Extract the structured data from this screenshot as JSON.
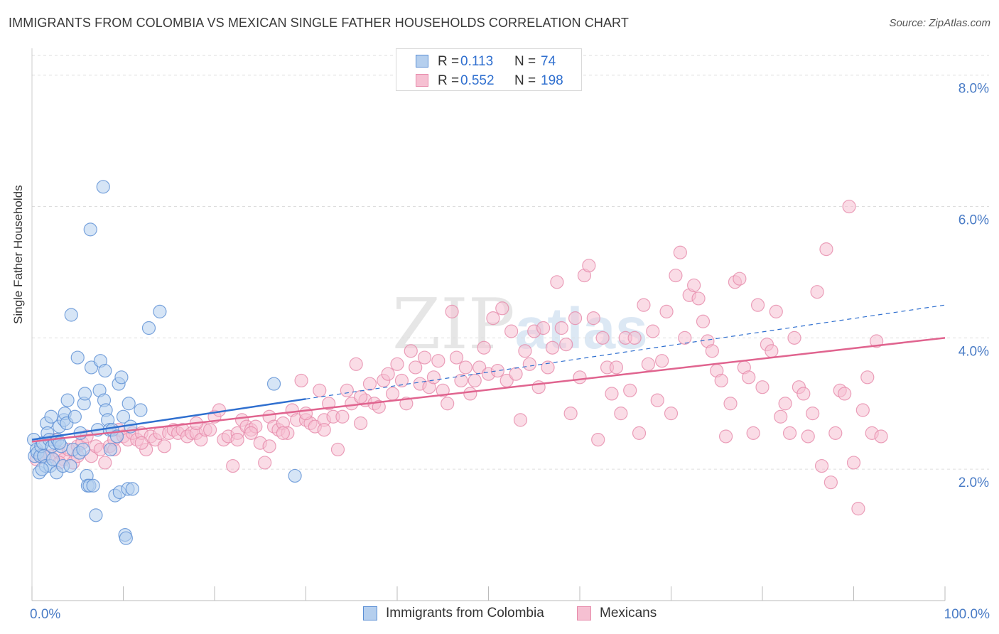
{
  "title": "IMMIGRANTS FROM COLOMBIA VS MEXICAN SINGLE FATHER HOUSEHOLDS CORRELATION CHART",
  "source": "Source: ZipAtlas.com",
  "watermark": {
    "zip": "ZIP",
    "atlas": "atlas"
  },
  "legend_top": {
    "rows": [
      {
        "r_label": "R =",
        "r_value": "0.113",
        "n_label": "N =",
        "n_value": "74"
      },
      {
        "r_label": "R =",
        "r_value": "0.552",
        "n_label": "N =",
        "n_value": "198"
      }
    ]
  },
  "legend_bottom": {
    "items": [
      "Immigrants from Colombia",
      "Mexicans"
    ]
  },
  "colors": {
    "blue_fill": "#b5cfee",
    "blue_stroke": "#5b8fd4",
    "blue_line": "#2f6fcf",
    "pink_fill": "#f6c0d2",
    "pink_stroke": "#e68aaa",
    "pink_line": "#e0648f",
    "tick_label": "#4a7cc6",
    "grid": "#dddddd"
  },
  "chart_data": {
    "type": "scatter",
    "title": "IMMIGRANTS FROM COLOMBIA VS MEXICAN SINGLE FATHER HOUSEHOLDS CORRELATION CHART",
    "xlabel": "",
    "ylabel": "Single Father Households",
    "xlim": [
      0,
      100
    ],
    "ylim": [
      0,
      8.3
    ],
    "x_tick_labels": [
      {
        "value": 0,
        "label": "0.0%"
      },
      {
        "value": 100,
        "label": "100.0%"
      }
    ],
    "y_ticks": [
      {
        "value": 2,
        "label": "2.0%"
      },
      {
        "value": 4,
        "label": "4.0%"
      },
      {
        "value": 6,
        "label": "6.0%"
      },
      {
        "value": 8,
        "label": "8.0%"
      }
    ],
    "x_minor_ticks": [
      0,
      10,
      20,
      30,
      40,
      50,
      60,
      70,
      80,
      90,
      100
    ],
    "grid": true,
    "legend_position": "top-center",
    "series": [
      {
        "name": "Immigrants from Colombia",
        "R": 0.113,
        "N": 74,
        "trend": {
          "x0": 0,
          "y0": 2.45,
          "x1": 30,
          "y1": 3.07,
          "dashed_to": 100,
          "y_at_dashed_end": 4.5
        },
        "points": [
          [
            0.2,
            2.45
          ],
          [
            0.3,
            2.2
          ],
          [
            0.5,
            2.3
          ],
          [
            0.6,
            2.25
          ],
          [
            0.8,
            1.95
          ],
          [
            0.9,
            2.2
          ],
          [
            1.0,
            2.35
          ],
          [
            1.2,
            2.4
          ],
          [
            1.3,
            2.2
          ],
          [
            1.5,
            2.05
          ],
          [
            1.6,
            2.7
          ],
          [
            1.7,
            2.55
          ],
          [
            1.9,
            2.45
          ],
          [
            2.0,
            2.05
          ],
          [
            2.1,
            2.8
          ],
          [
            2.2,
            2.35
          ],
          [
            2.3,
            2.15
          ],
          [
            2.5,
            2.4
          ],
          [
            2.7,
            1.95
          ],
          [
            2.8,
            2.45
          ],
          [
            3.0,
            2.65
          ],
          [
            3.2,
            2.35
          ],
          [
            3.4,
            2.05
          ],
          [
            3.5,
            2.75
          ],
          [
            3.6,
            2.85
          ],
          [
            3.8,
            2.7
          ],
          [
            3.9,
            3.05
          ],
          [
            4.2,
            2.05
          ],
          [
            4.3,
            4.35
          ],
          [
            4.5,
            2.3
          ],
          [
            4.7,
            2.8
          ],
          [
            5.0,
            3.7
          ],
          [
            5.2,
            2.25
          ],
          [
            5.3,
            2.55
          ],
          [
            5.6,
            2.3
          ],
          [
            5.7,
            3.0
          ],
          [
            5.8,
            3.15
          ],
          [
            6.0,
            1.9
          ],
          [
            6.1,
            1.75
          ],
          [
            6.3,
            1.75
          ],
          [
            6.4,
            5.65
          ],
          [
            6.5,
            3.55
          ],
          [
            6.7,
            1.75
          ],
          [
            7.0,
            1.3
          ],
          [
            7.2,
            2.6
          ],
          [
            7.4,
            3.2
          ],
          [
            7.5,
            3.65
          ],
          [
            7.8,
            6.3
          ],
          [
            7.9,
            3.05
          ],
          [
            8.0,
            3.5
          ],
          [
            8.1,
            2.9
          ],
          [
            8.3,
            2.75
          ],
          [
            8.5,
            2.6
          ],
          [
            8.6,
            2.3
          ],
          [
            8.8,
            2.6
          ],
          [
            9.1,
            1.6
          ],
          [
            9.3,
            2.5
          ],
          [
            9.5,
            3.3
          ],
          [
            9.6,
            1.65
          ],
          [
            9.8,
            3.4
          ],
          [
            10.0,
            2.8
          ],
          [
            10.2,
            1.0
          ],
          [
            10.3,
            0.95
          ],
          [
            10.5,
            1.7
          ],
          [
            10.6,
            3.0
          ],
          [
            10.8,
            2.65
          ],
          [
            11.0,
            1.7
          ],
          [
            11.9,
            2.9
          ],
          [
            12.8,
            4.15
          ],
          [
            14.0,
            4.4
          ],
          [
            26.5,
            3.3
          ],
          [
            28.8,
            1.9
          ],
          [
            3.0,
            2.4
          ],
          [
            1.1,
            2.0
          ]
        ]
      },
      {
        "name": "Mexicans",
        "R": 0.552,
        "N": 198,
        "trend": {
          "x0": 0,
          "y0": 2.42,
          "x1": 100,
          "y1": 4.0
        },
        "points": [
          [
            0.5,
            2.15
          ],
          [
            1.0,
            2.2
          ],
          [
            1.5,
            2.2
          ],
          [
            2.0,
            2.2
          ],
          [
            2.5,
            2.45
          ],
          [
            3.0,
            2.25
          ],
          [
            3.5,
            2.15
          ],
          [
            4.0,
            2.3
          ],
          [
            4.5,
            2.1
          ],
          [
            5.0,
            2.35
          ],
          [
            5.5,
            2.4
          ],
          [
            6.0,
            2.5
          ],
          [
            6.5,
            2.2
          ],
          [
            7.0,
            2.35
          ],
          [
            7.5,
            2.3
          ],
          [
            8.0,
            2.1
          ],
          [
            8.5,
            2.35
          ],
          [
            9.0,
            2.45
          ],
          [
            9.5,
            2.6
          ],
          [
            10.0,
            2.5
          ],
          [
            10.5,
            2.45
          ],
          [
            11.0,
            2.55
          ],
          [
            11.5,
            2.45
          ],
          [
            12.0,
            2.55
          ],
          [
            12.5,
            2.3
          ],
          [
            13.0,
            2.5
          ],
          [
            13.5,
            2.45
          ],
          [
            14.0,
            2.55
          ],
          [
            14.5,
            2.35
          ],
          [
            15.0,
            2.55
          ],
          [
            15.5,
            2.6
          ],
          [
            16.0,
            2.55
          ],
          [
            16.5,
            2.6
          ],
          [
            17.0,
            2.5
          ],
          [
            17.5,
            2.55
          ],
          [
            18.0,
            2.55
          ],
          [
            18.5,
            2.45
          ],
          [
            19.0,
            2.6
          ],
          [
            19.5,
            2.6
          ],
          [
            20.0,
            2.8
          ],
          [
            20.5,
            2.9
          ],
          [
            21.0,
            2.45
          ],
          [
            21.5,
            2.5
          ],
          [
            22.0,
            2.05
          ],
          [
            22.5,
            2.55
          ],
          [
            23.0,
            2.75
          ],
          [
            23.5,
            2.65
          ],
          [
            24.0,
            2.6
          ],
          [
            24.5,
            2.65
          ],
          [
            25.0,
            2.4
          ],
          [
            25.5,
            2.1
          ],
          [
            26.0,
            2.8
          ],
          [
            26.5,
            2.65
          ],
          [
            27.0,
            2.6
          ],
          [
            27.5,
            2.7
          ],
          [
            28.0,
            2.55
          ],
          [
            28.5,
            2.9
          ],
          [
            29.0,
            2.75
          ],
          [
            29.5,
            3.35
          ],
          [
            30.0,
            2.75
          ],
          [
            30.5,
            2.7
          ],
          [
            31.0,
            2.65
          ],
          [
            31.5,
            3.2
          ],
          [
            32.0,
            2.75
          ],
          [
            32.5,
            3.0
          ],
          [
            33.0,
            2.8
          ],
          [
            33.5,
            2.3
          ],
          [
            34.0,
            2.8
          ],
          [
            34.5,
            3.2
          ],
          [
            35.0,
            3.0
          ],
          [
            35.5,
            3.6
          ],
          [
            36.0,
            2.7
          ],
          [
            36.5,
            3.05
          ],
          [
            37.0,
            3.3
          ],
          [
            37.5,
            3.0
          ],
          [
            38.0,
            2.95
          ],
          [
            38.5,
            3.35
          ],
          [
            39.0,
            3.45
          ],
          [
            39.5,
            3.15
          ],
          [
            40.0,
            3.6
          ],
          [
            40.5,
            3.35
          ],
          [
            41.0,
            3.0
          ],
          [
            41.5,
            3.8
          ],
          [
            42.0,
            3.55
          ],
          [
            42.5,
            3.3
          ],
          [
            43.0,
            3.7
          ],
          [
            43.5,
            3.25
          ],
          [
            44.0,
            3.4
          ],
          [
            44.5,
            3.65
          ],
          [
            45.0,
            3.2
          ],
          [
            45.5,
            3.0
          ],
          [
            46.0,
            4.4
          ],
          [
            46.5,
            3.7
          ],
          [
            47.0,
            3.35
          ],
          [
            47.5,
            3.55
          ],
          [
            48.0,
            3.15
          ],
          [
            48.5,
            3.35
          ],
          [
            49.0,
            3.55
          ],
          [
            49.5,
            3.85
          ],
          [
            50.0,
            3.45
          ],
          [
            50.5,
            4.3
          ],
          [
            51.0,
            3.5
          ],
          [
            51.5,
            4.45
          ],
          [
            52.0,
            3.35
          ],
          [
            52.5,
            4.1
          ],
          [
            53.0,
            3.45
          ],
          [
            53.5,
            2.75
          ],
          [
            54.0,
            3.8
          ],
          [
            54.5,
            3.6
          ],
          [
            55.0,
            4.1
          ],
          [
            55.5,
            3.25
          ],
          [
            56.0,
            4.15
          ],
          [
            56.5,
            3.55
          ],
          [
            57.0,
            3.85
          ],
          [
            57.5,
            4.85
          ],
          [
            58.0,
            4.15
          ],
          [
            58.5,
            3.9
          ],
          [
            59.0,
            2.85
          ],
          [
            59.5,
            4.3
          ],
          [
            60.0,
            3.4
          ],
          [
            60.5,
            4.95
          ],
          [
            61.0,
            5.1
          ],
          [
            61.5,
            4.3
          ],
          [
            62.0,
            2.45
          ],
          [
            62.5,
            4.0
          ],
          [
            63.0,
            3.55
          ],
          [
            63.5,
            3.15
          ],
          [
            64.0,
            3.55
          ],
          [
            64.5,
            2.85
          ],
          [
            65.0,
            4.0
          ],
          [
            65.5,
            3.2
          ],
          [
            66.0,
            4.0
          ],
          [
            66.5,
            2.55
          ],
          [
            67.0,
            4.5
          ],
          [
            67.5,
            3.6
          ],
          [
            68.0,
            4.1
          ],
          [
            68.5,
            3.05
          ],
          [
            69.0,
            3.65
          ],
          [
            69.5,
            4.4
          ],
          [
            70.0,
            2.85
          ],
          [
            70.5,
            4.95
          ],
          [
            71.0,
            5.3
          ],
          [
            71.5,
            4.0
          ],
          [
            72.0,
            4.65
          ],
          [
            72.5,
            4.8
          ],
          [
            73.0,
            4.6
          ],
          [
            73.5,
            4.25
          ],
          [
            74.0,
            3.95
          ],
          [
            74.5,
            3.8
          ],
          [
            75.0,
            3.5
          ],
          [
            75.5,
            3.35
          ],
          [
            76.0,
            2.5
          ],
          [
            76.5,
            3.0
          ],
          [
            77.0,
            4.85
          ],
          [
            77.5,
            4.9
          ],
          [
            78.0,
            3.55
          ],
          [
            78.5,
            3.4
          ],
          [
            79.0,
            2.55
          ],
          [
            79.5,
            4.5
          ],
          [
            80.0,
            3.25
          ],
          [
            80.5,
            3.9
          ],
          [
            81.0,
            3.8
          ],
          [
            81.5,
            4.4
          ],
          [
            82.0,
            2.8
          ],
          [
            82.5,
            3.0
          ],
          [
            83.0,
            2.55
          ],
          [
            83.5,
            4.0
          ],
          [
            84.0,
            3.25
          ],
          [
            84.5,
            3.15
          ],
          [
            85.0,
            2.5
          ],
          [
            85.5,
            2.85
          ],
          [
            86.0,
            4.7
          ],
          [
            86.5,
            2.05
          ],
          [
            87.0,
            5.35
          ],
          [
            87.5,
            1.8
          ],
          [
            88.0,
            2.55
          ],
          [
            88.5,
            3.2
          ],
          [
            89.0,
            3.15
          ],
          [
            89.5,
            6.0
          ],
          [
            90.0,
            2.1
          ],
          [
            90.5,
            1.4
          ],
          [
            91.0,
            2.9
          ],
          [
            91.5,
            3.4
          ],
          [
            92.0,
            2.55
          ],
          [
            92.5,
            3.95
          ],
          [
            93.0,
            2.5
          ],
          [
            22.5,
            2.45
          ],
          [
            24.0,
            2.55
          ],
          [
            26.0,
            2.35
          ],
          [
            27.5,
            2.55
          ],
          [
            30.0,
            2.85
          ],
          [
            18.0,
            2.7
          ],
          [
            12.0,
            2.4
          ],
          [
            9.0,
            2.3
          ],
          [
            5.0,
            2.2
          ],
          [
            3.0,
            2.1
          ],
          [
            32.0,
            2.6
          ],
          [
            36.0,
            3.1
          ]
        ]
      }
    ]
  }
}
